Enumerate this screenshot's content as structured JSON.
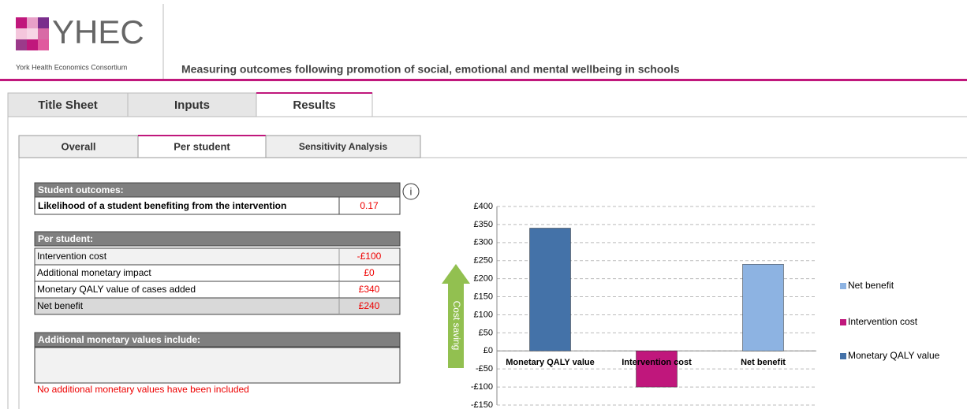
{
  "header": {
    "logo_text": "YHEC",
    "logo_subtitle": "York Health Economics Consortium",
    "title": "Measuring outcomes following promotion of social, emotional and mental wellbeing in schools"
  },
  "tabs": [
    "Title Sheet",
    "Inputs",
    "Results"
  ],
  "subtabs": [
    "Overall",
    "Per student",
    "Sensitivity Analysis"
  ],
  "outcomes": {
    "heading": "Student outcomes:",
    "rows": [
      [
        "Likelihood of a student benefiting from the intervention",
        "0.17"
      ]
    ]
  },
  "per_student": {
    "heading": "Per student:",
    "rows": [
      [
        "Intervention cost",
        "-£100"
      ],
      [
        "Additional monetary impact",
        "£0"
      ],
      [
        "Monetary QALY value of cases added",
        "£340"
      ],
      [
        "Net benefit",
        "£240"
      ]
    ]
  },
  "additional": {
    "heading": "Additional monetary values include:",
    "note": "No additional monetary values have been included"
  },
  "chart_data": {
    "type": "bar",
    "annotation": "Cost saving",
    "categories": [
      "Monetary QALY value",
      "Intervention cost",
      "Net benefit"
    ],
    "series": [
      {
        "name": "Net benefit",
        "color": "#8db3e2",
        "values": [
          null,
          null,
          240
        ]
      },
      {
        "name": "Intervention cost",
        "color": "#c0177c",
        "values": [
          null,
          -100,
          null
        ]
      },
      {
        "name": "Monetary QALY value",
        "color": "#4472a8",
        "values": [
          340,
          null,
          null
        ]
      }
    ],
    "ylim": [
      -150,
      400
    ],
    "yticks": [
      {
        "value": -150,
        "label": "-£150"
      },
      {
        "value": -100,
        "label": "-£100"
      },
      {
        "value": -50,
        "label": "-£50"
      },
      {
        "value": 0,
        "label": "£0"
      },
      {
        "value": 50,
        "label": "£50"
      },
      {
        "value": 100,
        "label": "£100"
      },
      {
        "value": 150,
        "label": "£150"
      },
      {
        "value": 200,
        "label": "£200"
      },
      {
        "value": 250,
        "label": "£250"
      },
      {
        "value": 300,
        "label": "£300"
      },
      {
        "value": 350,
        "label": "£350"
      },
      {
        "value": 400,
        "label": "£400"
      }
    ],
    "grid": true
  }
}
